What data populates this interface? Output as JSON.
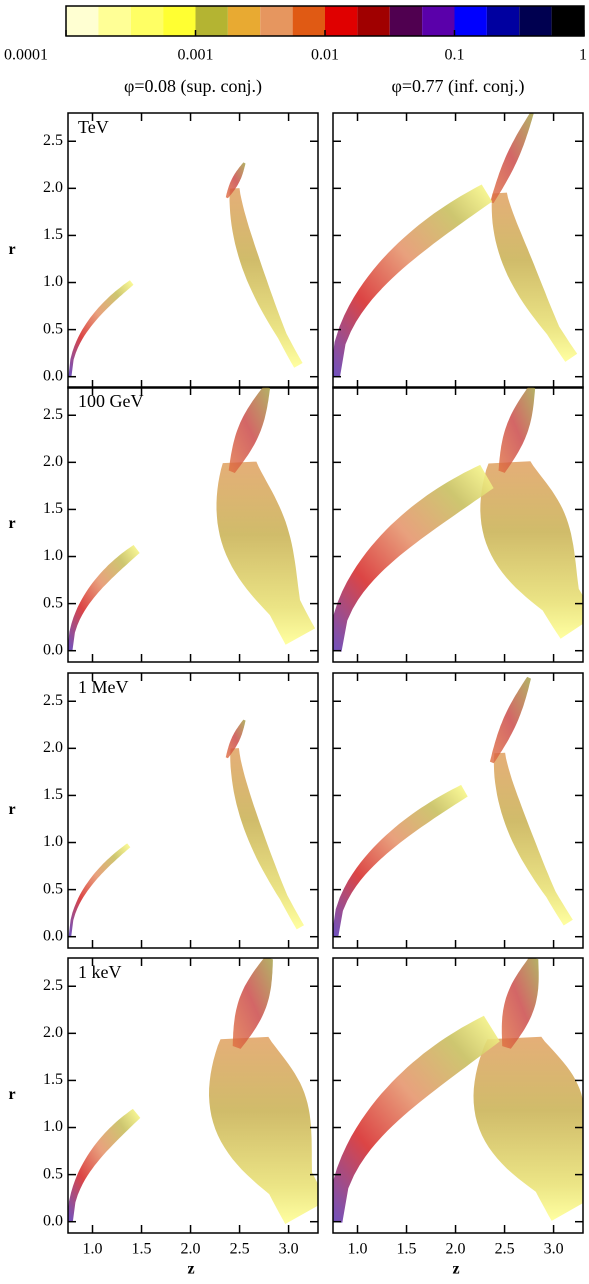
{
  "chart_data": {
    "type": "heatmap",
    "colorbar": {
      "scale": "log",
      "lim": [
        0.0001,
        1
      ],
      "ticks": [
        0.0001,
        0.001,
        0.01,
        0.1,
        1
      ],
      "colors": [
        "#ffffd2",
        "#ffff96",
        "#ffff64",
        "#ffff32",
        "#b4b432",
        "#e8aa32",
        "#e6965f",
        "#e05a14",
        "#e00000",
        "#a00000",
        "#500050",
        "#5a00aa",
        "#0000ff",
        "#0000a0",
        "#000050",
        "#000000"
      ]
    },
    "columns": [
      "φ=0.08 (sup. conj.)",
      "φ=0.77 (inf. conj.)"
    ],
    "rows": [
      "TeV",
      "100 GeV",
      "1 MeV",
      "1 keV"
    ],
    "xlabel": "z",
    "ylabel": "r",
    "xlim": [
      0.75,
      3.3
    ],
    "ylim": [
      -0.12,
      2.8
    ],
    "xticks": [
      {
        "value": 1,
        "label": "1.0"
      },
      1.5,
      {
        "value": 2,
        "label": "2.0"
      },
      2.5,
      {
        "value": 3,
        "label": "3.0"
      }
    ],
    "yticks": [
      {
        "value": 0,
        "label": "0.0"
      },
      0.5,
      {
        "value": 1,
        "label": "1.0"
      },
      1.5,
      {
        "value": 2,
        "label": "2.0"
      },
      2.5
    ]
  }
}
